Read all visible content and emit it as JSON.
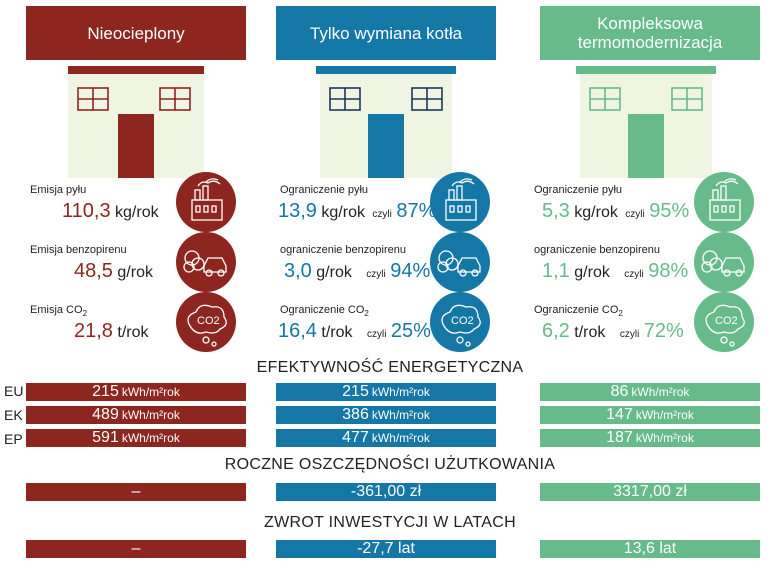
{
  "columns": [
    {
      "title": "Nieocieplony",
      "color": "#8e2620",
      "metrics": [
        {
          "label": "Emisja pyłu",
          "value": "110,3",
          "unit": "kg/rok",
          "czyli": "",
          "pct": "",
          "icon": "factory-icon"
        },
        {
          "label": "Emisja benzopirenu",
          "value": "48,5",
          "unit": "g/rok",
          "czyli": "",
          "pct": "",
          "icon": "car-exhaust-icon"
        },
        {
          "label": "Emisja CO",
          "label_sub": "2",
          "value": "21,8",
          "unit": "t/rok",
          "czyli": "",
          "pct": "",
          "icon": "co2-cloud-icon"
        }
      ]
    },
    {
      "title": "Tylko wymiana kotła",
      "color": "#1577a6",
      "metrics": [
        {
          "label": "Ograniczenie pyłu",
          "value": "13,9",
          "unit": "kg/rok",
          "czyli": "czyli",
          "pct": "87%",
          "icon": "factory-icon"
        },
        {
          "label": "ograniczenie benzopirenu",
          "value": "3,0",
          "unit": "g/rok",
          "czyli": "czyli",
          "pct": "94%",
          "icon": "car-exhaust-icon"
        },
        {
          "label": "Ograniczenie CO",
          "label_sub": "2",
          "value": "16,4",
          "unit": "t/rok",
          "czyli": "czyli",
          "pct": "25%",
          "icon": "co2-cloud-icon"
        }
      ]
    },
    {
      "title_line1": "Kompleksowa",
      "title_line2": "termomodernizacja",
      "color": "#67bb8b",
      "metrics": [
        {
          "label": "Ograniczenie pyłu",
          "value": "5,3",
          "unit": "kg/rok",
          "czyli": "czyli",
          "pct": "95%",
          "icon": "factory-icon"
        },
        {
          "label": "ograniczenie benzopirenu",
          "value": "1,1",
          "unit": "g/rok",
          "czyli": "czyli",
          "pct": "98%",
          "icon": "car-exhaust-icon"
        },
        {
          "label": "Ograniczenie CO",
          "label_sub": "2",
          "value": "6,2",
          "unit": "t/rok",
          "czyli": "czyli",
          "pct": "72%",
          "icon": "co2-cloud-icon"
        }
      ]
    }
  ],
  "energy": {
    "heading": "EFEKTYWNOŚĆ ENERGETYCZNA",
    "unit": "kWh/m²rok",
    "rows": [
      {
        "label": "EU",
        "values": [
          "215",
          "215",
          "86"
        ]
      },
      {
        "label": "EK",
        "values": [
          "489",
          "386",
          "147"
        ]
      },
      {
        "label": "EP",
        "values": [
          "591",
          "477",
          "187"
        ]
      }
    ]
  },
  "savings": {
    "heading": "ROCZNE OSZCZĘDNOŚCI UŻUTKOWANIA",
    "values": [
      "–",
      "-361,00 zł",
      "3317,00 zł"
    ]
  },
  "payback": {
    "heading": "ZWROT INWESTYCJI W LATACH",
    "values": [
      "–",
      "-27,7 lat",
      "13,6 lat"
    ]
  }
}
